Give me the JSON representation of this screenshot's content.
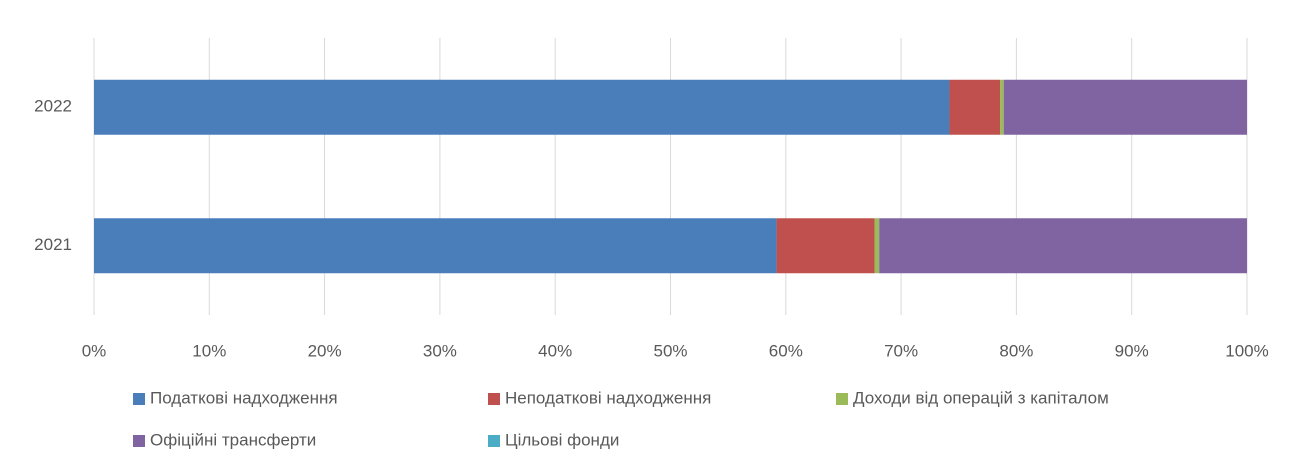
{
  "chart_data": {
    "type": "stacked-bar-horizontal",
    "categories": [
      "2022",
      "2021"
    ],
    "series": [
      {
        "name": "Податкові надходження",
        "color": "#4a7ebb",
        "values": [
          74.2,
          59.2
        ]
      },
      {
        "name": "Неподаткові надходження",
        "color": "#c0504d",
        "values": [
          4.4,
          8.5
        ]
      },
      {
        "name": "Доходи від операцій з капіталом",
        "color": "#9bbb59",
        "values": [
          0.3,
          0.4
        ]
      },
      {
        "name": "Офіційні трансферти",
        "color": "#8064a2",
        "values": [
          21.1,
          31.9
        ]
      },
      {
        "name": "Цільові фонди",
        "color": "#4bacc6",
        "values": [
          0,
          0
        ]
      }
    ],
    "xlim": [
      0,
      100
    ],
    "xticks": [
      {
        "value": 0,
        "label": "0%"
      },
      {
        "value": 10,
        "label": "10%"
      },
      {
        "value": 20,
        "label": "20%"
      },
      {
        "value": 30,
        "label": "30%"
      },
      {
        "value": 40,
        "label": "40%"
      },
      {
        "value": 50,
        "label": "50%"
      },
      {
        "value": 60,
        "label": "60%"
      },
      {
        "value": 70,
        "label": "70%"
      },
      {
        "value": 80,
        "label": "80%"
      },
      {
        "value": 90,
        "label": "90%"
      },
      {
        "value": 100,
        "label": "100%"
      }
    ],
    "grid": true
  }
}
